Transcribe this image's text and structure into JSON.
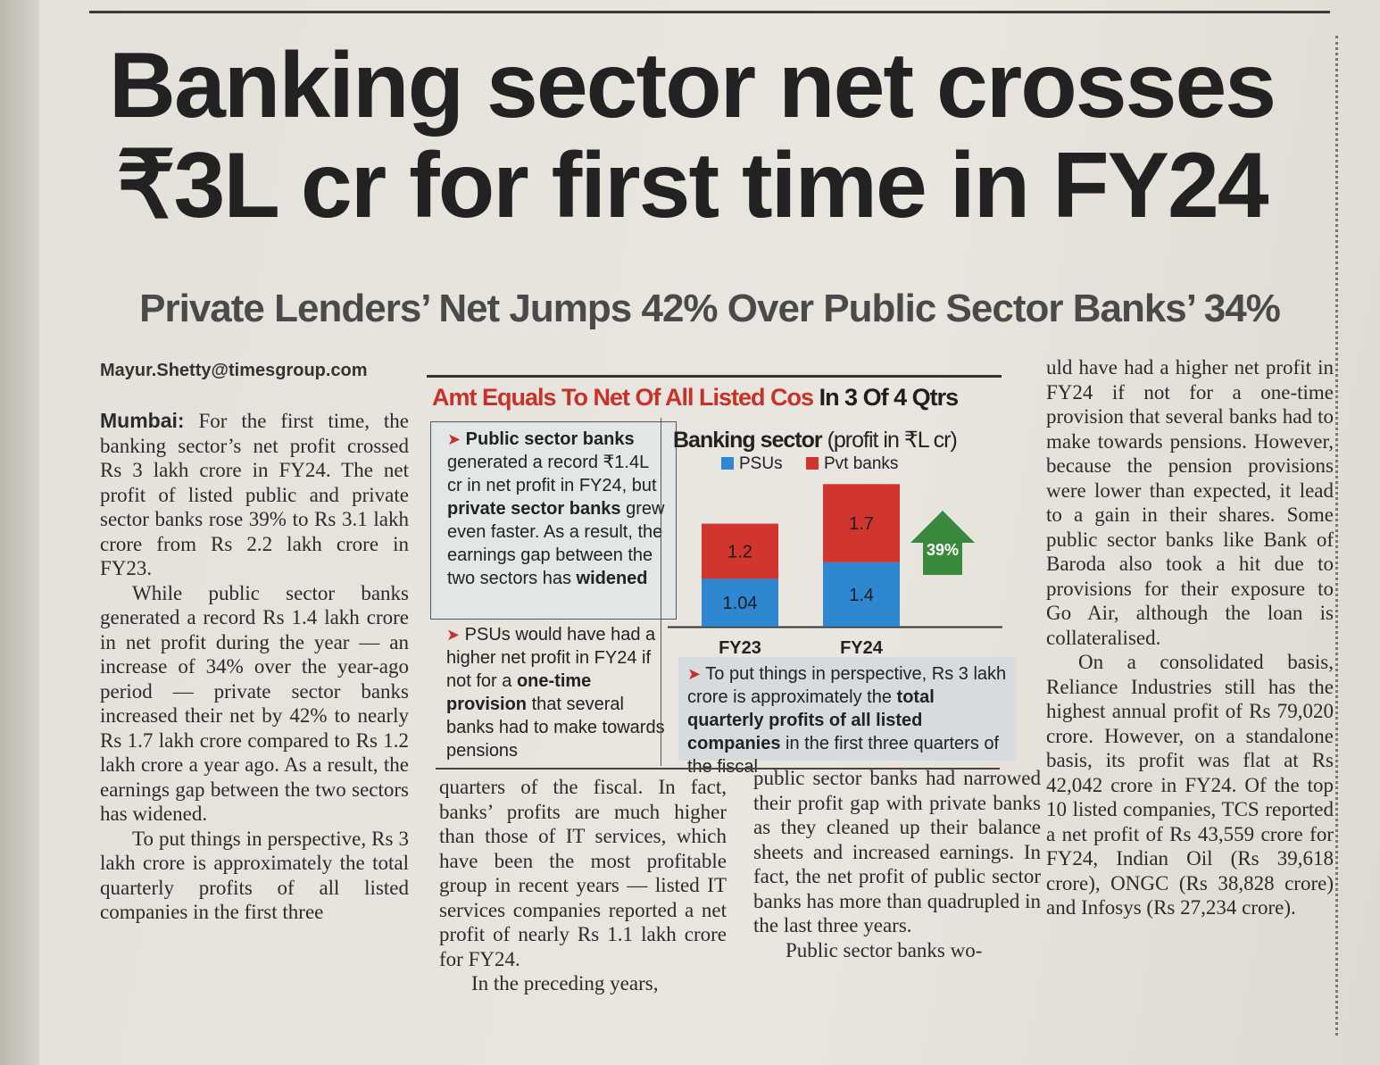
{
  "article": {
    "headline_line1": "Banking sector net crosses",
    "headline_line2": "₹3L cr for first time in FY24",
    "subheadline": "Private Lenders’ Net Jumps 42% Over Public Sector Banks’ 34%",
    "byline": "Mayur.Shetty@timesgroup.com",
    "dateline": "Mumbai:",
    "col1_p1": "For the first time, the banking sector’s net profit crossed Rs 3 lakh crore in FY24. The net profit of listed public and private sector banks rose 39% to Rs 3.1 lakh crore from Rs 2.2 lakh crore in FY23.",
    "col1_p2": "While public sector banks generated a record Rs 1.4 lakh crore in net profit during the year — an increase of 34% over the year-ago period — private sector banks increased their net by 42% to nearly Rs 1.7 lakh crore compared to Rs 1.2 lakh crore a year ago. As a result, the earnings gap between the two sectors has widened.",
    "col1_p3": "To put things in perspective, Rs 3 lakh crore is approximately the total quarterly profits of all listed companies in the first three",
    "col2_p1": "quarters of the fiscal. In fact, banks’ profits are much higher than those of IT services, which have been the most profitable group in recent years — listed IT services companies reported a net profit of nearly Rs 1.1 lakh crore for FY24.",
    "col2_p2": "In the preceding years,",
    "col3_p1": "public sector banks had narrowed their profit gap with private banks as they cleaned up their balance sheets and increased earnings. In fact, the net profit of public sector banks has more than quadrupled in the last three years.",
    "col3_p2": "Public sector banks wo-",
    "col4_p1": "uld have had a higher net profit in FY24 if not for a one-time provision that several banks had to make towards pensions. However, because the pension provisions were lower than expected, it lead to a gain in their shares. Some public sector banks like Bank of Baroda also took a hit due to provisions for their exposure to Go Air, although the loan is collateralised.",
    "col4_p2": "On a consolidated basis, Reliance Industries still has the highest annual profit of Rs 79,020 crore. However, on a standalone basis, its profit was flat at Rs 42,042 crore in FY24. Of the top 10 listed companies, TCS reported a net profit of Rs 43,559 crore for FY24, Indian Oil (Rs 39,618 crore), ONGC (Rs 38,828 crore) and Infosys (Rs 27,234 crore)."
  },
  "graphic": {
    "title_red": "Amt Equals To Net Of All Listed Cos",
    "title_dark": "In 3 Of 4 Qtrs",
    "box1_bold1": "Public sector banks",
    "box1_text1": "generated a record ₹1.4L cr in net profit in FY24, but",
    "box1_bold2": "private sector banks",
    "box1_text2": "grew even faster. As a result, the earnings gap between the two sectors has",
    "box1_bold3": "widened",
    "box2_text1": "PSUs would have had a higher net profit in FY24 if not for a",
    "box2_bold": "one-time provision",
    "box2_text2": "that several banks had to make towards pensions",
    "box3_text1": "To put things in perspective, Rs 3 lakh crore is approximately the",
    "box3_bold": "total quarterly profits of all listed companies",
    "box3_text2": "in the first three quarters of the fiscal",
    "growth_label": "39%"
  },
  "chart_data": {
    "type": "bar",
    "stacked": true,
    "title": "Banking sector",
    "title_unit": "(profit in ₹L cr)",
    "categories": [
      "FY23",
      "FY24"
    ],
    "series": [
      {
        "name": "PSUs",
        "values": [
          1.04,
          1.4
        ],
        "labels": [
          "1.04",
          "1.4"
        ],
        "color": "#2f86d1"
      },
      {
        "name": "Pvt banks",
        "values": [
          1.2,
          1.7
        ],
        "labels": [
          "1.2",
          "1.7"
        ],
        "color": "#d0362e"
      }
    ],
    "ylim": [
      0,
      3.3
    ],
    "legend": "top",
    "grid": false
  }
}
